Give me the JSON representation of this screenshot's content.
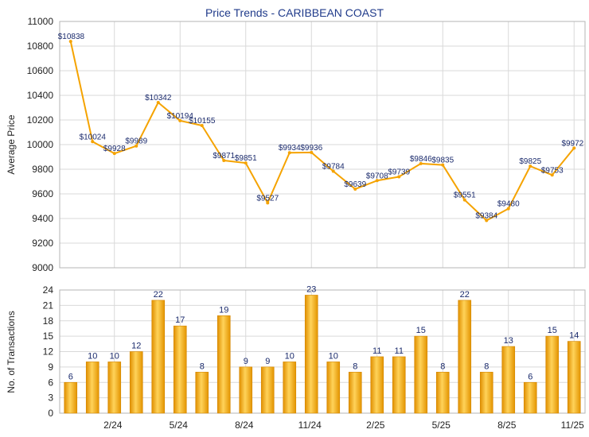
{
  "chart_data": [
    {
      "type": "line",
      "title": "Price Trends - CARIBBEAN COAST",
      "ylabel": "Average Price",
      "ylim": [
        9000,
        11000
      ],
      "yticks": [
        9000,
        9200,
        9400,
        9600,
        9800,
        10000,
        10200,
        10400,
        10600,
        10800,
        11000
      ],
      "grid": true,
      "color": "#f5a300",
      "values": [
        10838,
        10024,
        9928,
        9989,
        10342,
        10194,
        10155,
        9871,
        9851,
        9527,
        9934,
        9936,
        9784,
        9639,
        9708,
        9739,
        9846,
        9835,
        9551,
        9384,
        9480,
        9825,
        9753,
        9972
      ],
      "data_labels": [
        "$10838",
        "$10024",
        "$9928",
        "$9989",
        "$10342",
        "$10194",
        "$10155",
        "$9871",
        "$9851",
        "$9527",
        "$9934",
        "$9936",
        "$9784",
        "$9639",
        "$9708",
        "$9739",
        "$9846",
        "$9835",
        "$9551",
        "$9384",
        "$9480",
        "$9825",
        "$9753",
        "$9972"
      ]
    },
    {
      "type": "bar",
      "ylabel": "No. of Transactions",
      "ylim": [
        0,
        24
      ],
      "yticks": [
        0,
        3,
        6,
        9,
        12,
        15,
        18,
        21,
        24
      ],
      "grid": true,
      "color": "#f5a300",
      "values": [
        6,
        10,
        10,
        12,
        22,
        17,
        8,
        19,
        9,
        9,
        10,
        23,
        10,
        8,
        11,
        11,
        15,
        8,
        22,
        8,
        13,
        6,
        15,
        14
      ],
      "x_tick_labels": [
        {
          "index": 2,
          "label": "2/24"
        },
        {
          "index": 5,
          "label": "5/24"
        },
        {
          "index": 8,
          "label": "8/24"
        },
        {
          "index": 11,
          "label": "11/24"
        },
        {
          "index": 14,
          "label": "2/25"
        },
        {
          "index": 17,
          "label": "5/25"
        },
        {
          "index": 20,
          "label": "8/25"
        },
        {
          "index": 23,
          "label": "11/25"
        }
      ]
    }
  ]
}
